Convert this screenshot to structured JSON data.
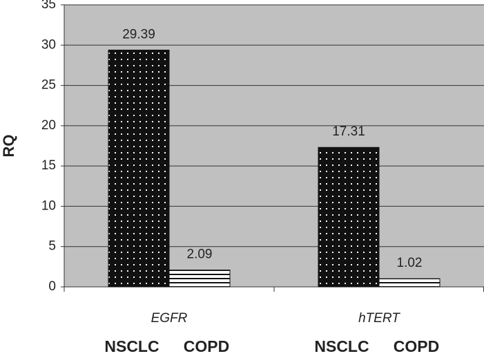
{
  "chart_data": {
    "type": "bar",
    "y_label": "RQ",
    "categories": [
      "EGFR",
      "hTERT"
    ],
    "series": [
      {
        "name": "NSCLC",
        "color": "#111111",
        "pattern": "dots",
        "values": [
          29.39,
          17.31
        ]
      },
      {
        "name": "COPD",
        "color": "#111111",
        "pattern": "stripes",
        "values": [
          2.09,
          1.02
        ]
      }
    ],
    "ylim": [
      0,
      35
    ],
    "yticks": [
      0,
      5,
      10,
      15,
      20,
      25,
      30,
      35
    ],
    "grid": true
  }
}
